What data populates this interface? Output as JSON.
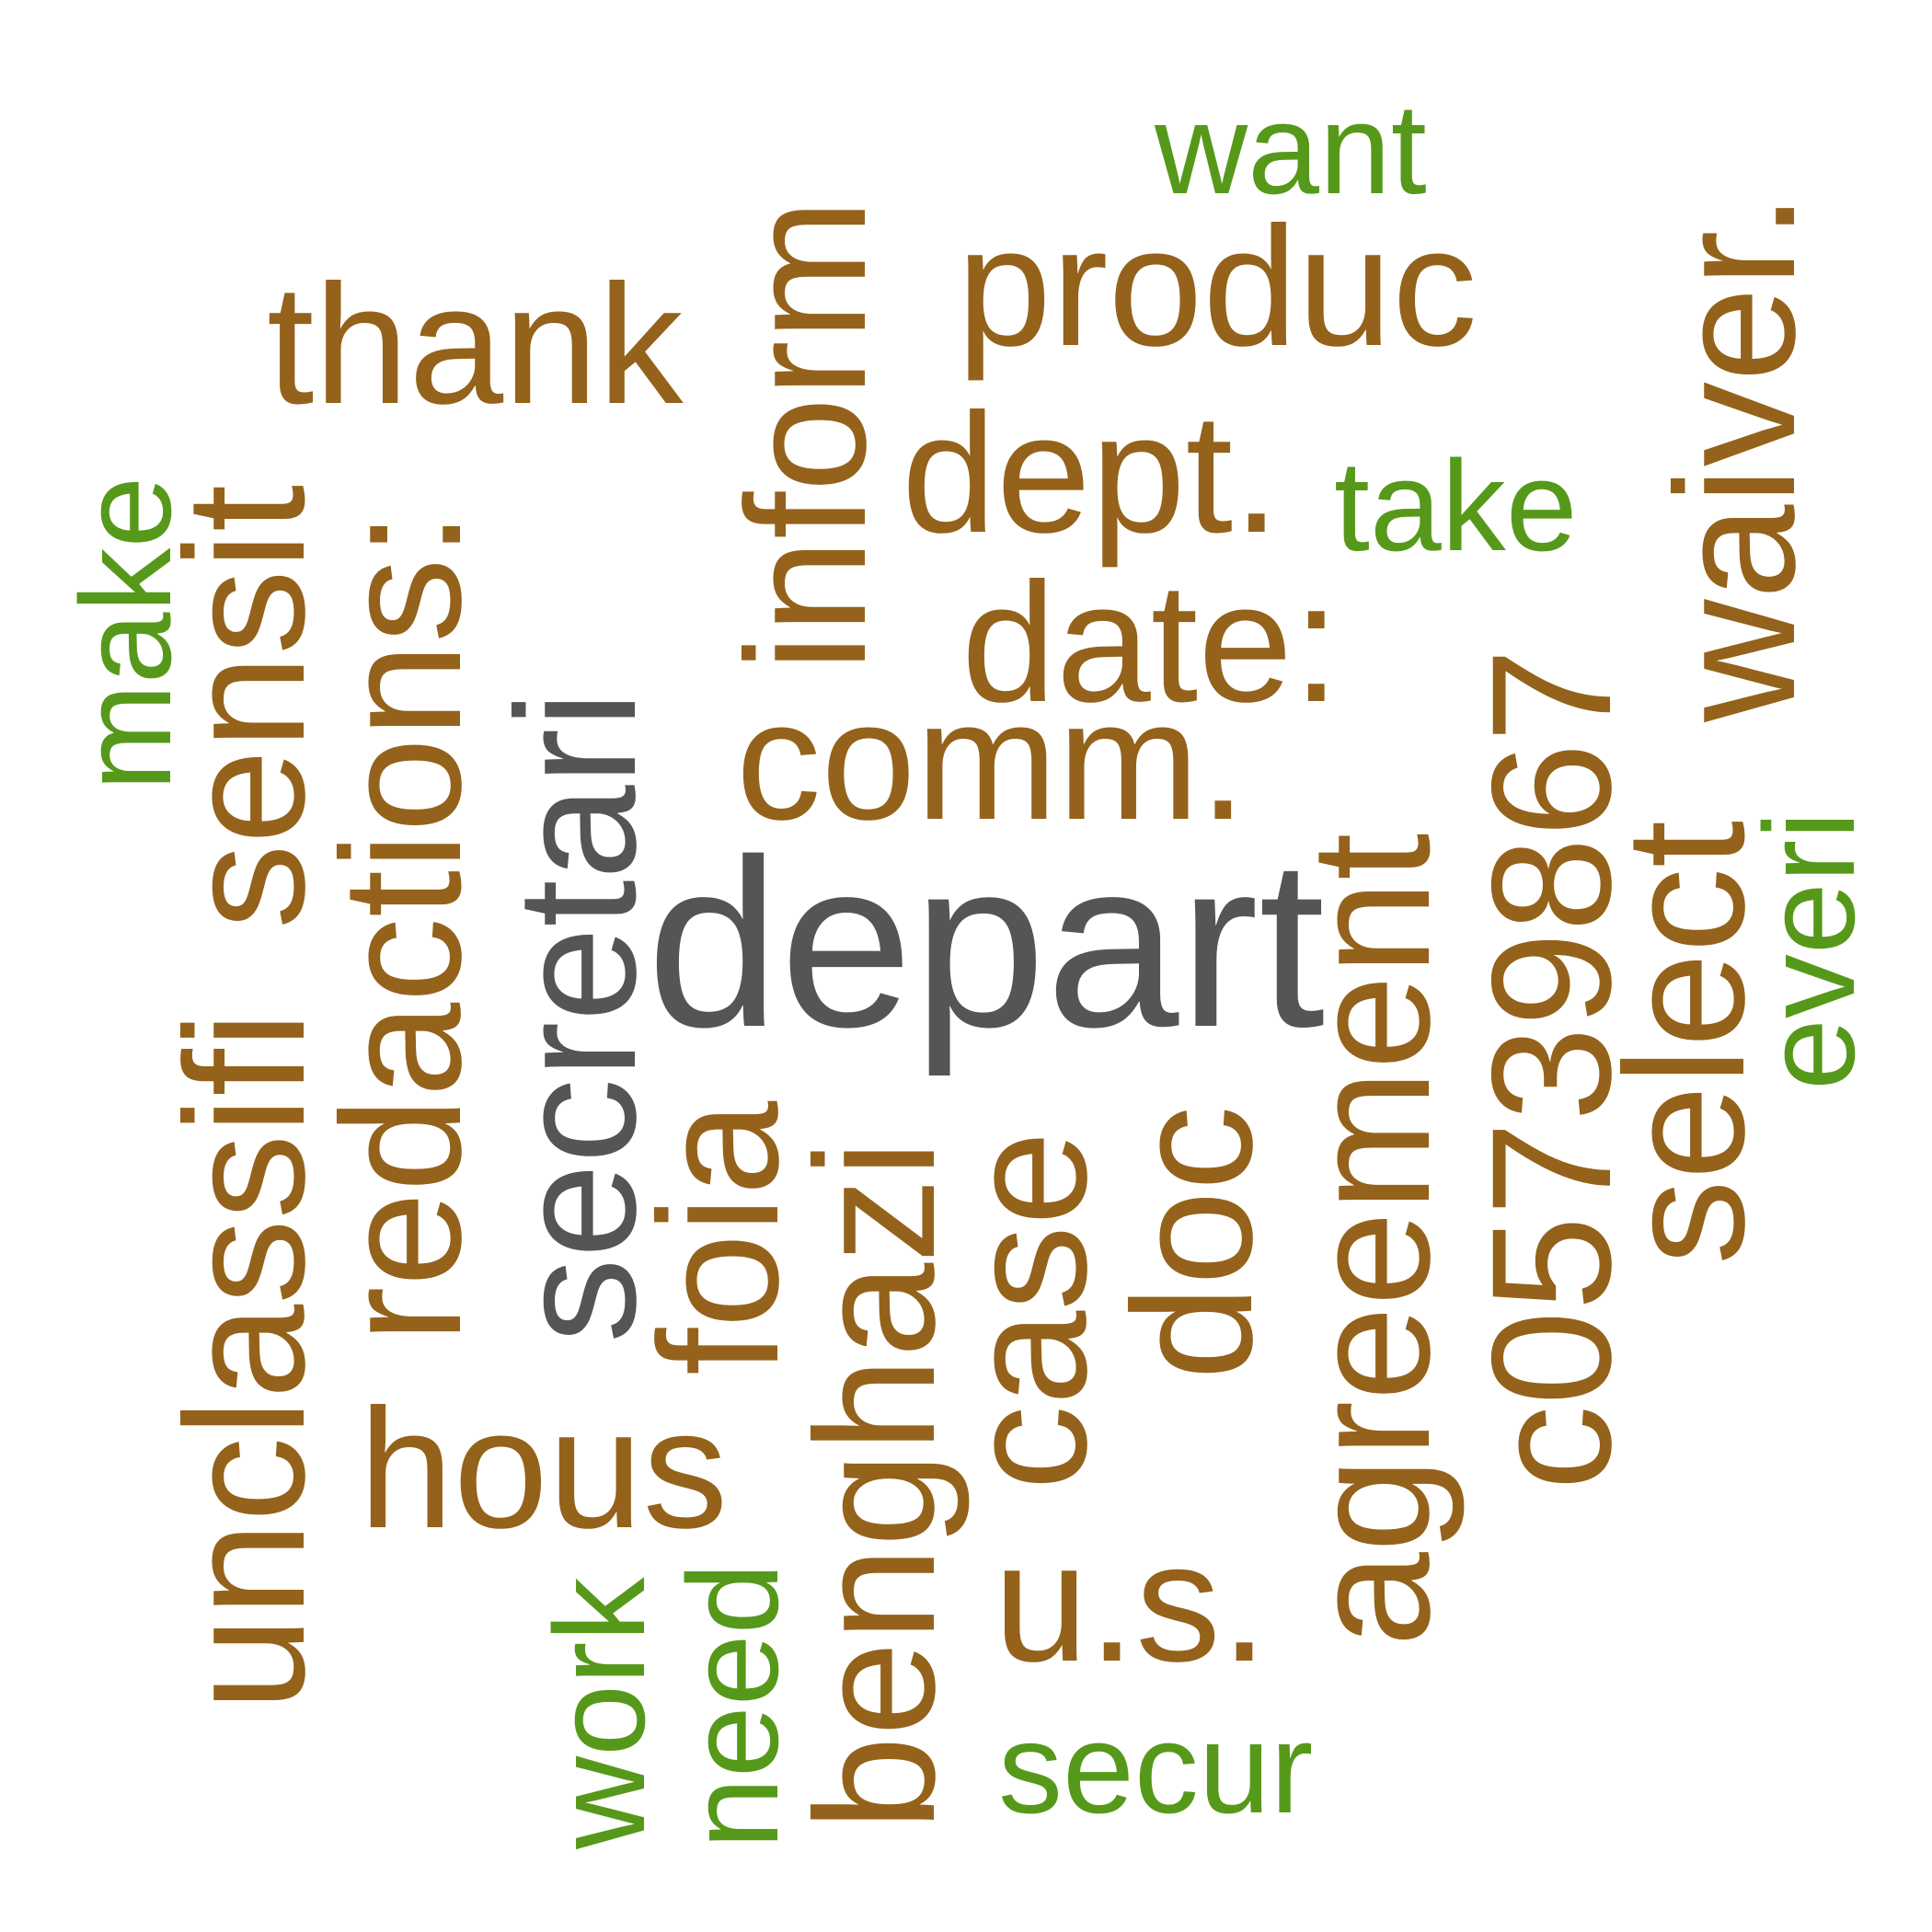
{
  "words": [
    {
      "text": "depart",
      "color": "gray"
    },
    {
      "text": "secretari",
      "color": "gray"
    },
    {
      "text": "produc",
      "color": "brown"
    },
    {
      "text": "thank",
      "color": "brown"
    },
    {
      "text": "dept.",
      "color": "brown"
    },
    {
      "text": "inform",
      "color": "brown"
    },
    {
      "text": "date:",
      "color": "brown"
    },
    {
      "text": "comm.",
      "color": "brown"
    },
    {
      "text": "waiver.",
      "color": "brown"
    },
    {
      "text": "c05739867",
      "color": "brown"
    },
    {
      "text": "agreement",
      "color": "brown"
    },
    {
      "text": "select",
      "color": "brown"
    },
    {
      "text": "unclassifi",
      "color": "brown"
    },
    {
      "text": "sensit",
      "color": "brown"
    },
    {
      "text": "redactions:",
      "color": "brown"
    },
    {
      "text": "foia",
      "color": "brown"
    },
    {
      "text": "benghazi",
      "color": "brown"
    },
    {
      "text": "case",
      "color": "brown"
    },
    {
      "text": "doc",
      "color": "brown"
    },
    {
      "text": "hous",
      "color": "brown"
    },
    {
      "text": "u.s.",
      "color": "brown"
    },
    {
      "text": "want",
      "color": "green"
    },
    {
      "text": "take",
      "color": "green"
    },
    {
      "text": "make",
      "color": "green"
    },
    {
      "text": "work",
      "color": "green"
    },
    {
      "text": "need",
      "color": "green"
    },
    {
      "text": "secur",
      "color": "green"
    },
    {
      "text": "everi",
      "color": "green"
    }
  ],
  "palette": {
    "brown": "#94621a",
    "gray": "#555555",
    "green": "#56991a"
  }
}
